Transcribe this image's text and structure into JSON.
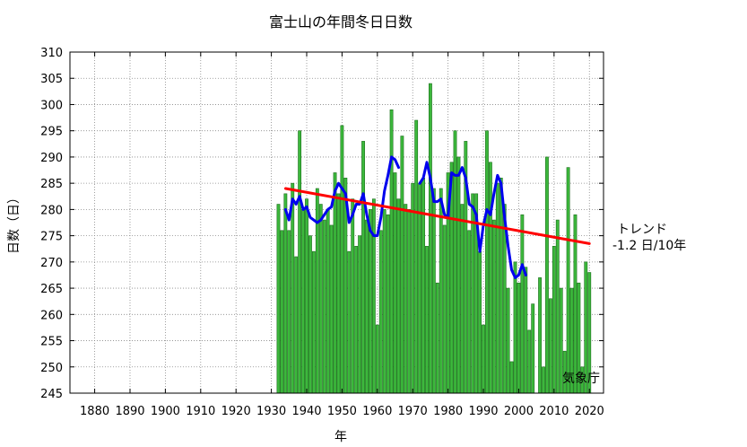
{
  "chart_data": {
    "type": "bar",
    "title": "富士山の年間冬日日数",
    "xlabel": "年",
    "ylabel": "日数（日）",
    "xlim": [
      1873,
      2024
    ],
    "ylim": [
      245,
      310
    ],
    "xticks": [
      1880,
      1890,
      1900,
      1910,
      1920,
      1930,
      1940,
      1950,
      1960,
      1970,
      1980,
      1990,
      2000,
      2010,
      2020
    ],
    "yticks": [
      245,
      250,
      255,
      260,
      265,
      270,
      275,
      280,
      285,
      290,
      295,
      300,
      305,
      310
    ],
    "grid": true,
    "credit": "気象庁",
    "trend_label_line1": "トレンド",
    "trend_label_line2": "-1.2 日/10年",
    "colors": {
      "bar": "#3cb83c",
      "bar_edge": "#1d6e1d",
      "moving_average": "#0000ee",
      "trend": "#ff0000"
    },
    "series": [
      {
        "type": "bar",
        "x": [
          1932,
          1933,
          1934,
          1935,
          1936,
          1937,
          1938,
          1939,
          1940,
          1941,
          1942,
          1943,
          1944,
          1945,
          1946,
          1947,
          1948,
          1949,
          1950,
          1951,
          1952,
          1953,
          1954,
          1955,
          1956,
          1957,
          1958,
          1959,
          1960,
          1961,
          1962,
          1963,
          1964,
          1965,
          1966,
          1967,
          1968,
          1969,
          1970,
          1971,
          1972,
          1973,
          1974,
          1975,
          1976,
          1977,
          1978,
          1979,
          1980,
          1981,
          1982,
          1983,
          1984,
          1985,
          1986,
          1987,
          1988,
          1989,
          1990,
          1991,
          1992,
          1993,
          1994,
          1995,
          1996,
          1997,
          1998,
          1999,
          2000,
          2001,
          2002,
          2003,
          2004,
          2005,
          2006,
          2007,
          2008,
          2009,
          2010,
          2011,
          2012,
          2013,
          2014,
          2015,
          2016,
          2017,
          2018,
          2019,
          2020,
          2021
        ],
        "values": [
          281,
          276,
          283,
          276,
          285,
          271,
          295,
          280,
          282,
          275,
          272,
          284,
          281,
          278,
          280,
          277,
          287,
          283,
          296,
          286,
          272,
          282,
          273,
          275,
          293,
          278,
          280,
          282,
          258,
          276,
          280,
          279,
          299,
          287,
          282,
          294,
          281,
          280,
          285,
          297,
          285,
          286,
          273,
          304,
          284,
          266,
          284,
          277,
          287,
          289,
          295,
          290,
          281,
          293,
          276,
          283,
          283,
          272,
          258,
          295,
          289,
          278,
          285,
          286,
          281,
          265,
          251,
          270,
          266,
          279,
          269,
          257,
          262,
          245,
          267,
          250,
          290,
          263,
          273,
          278,
          265,
          253,
          288,
          265,
          279,
          266,
          250,
          270,
          268,
          245
        ]
      },
      {
        "type": "line",
        "x": [
          1934,
          1935,
          1936,
          1937,
          1938,
          1939,
          1940,
          1941,
          1942,
          1943,
          1944,
          1945,
          1946,
          1947,
          1948,
          1949,
          1950,
          1951,
          1952,
          1953,
          1954,
          1955,
          1956,
          1957,
          1958,
          1959,
          1960,
          1961,
          1962,
          1963,
          1964,
          1965,
          1966
        ],
        "values": [
          280,
          278,
          282,
          281,
          282.5,
          280,
          280.5,
          278.5,
          278,
          277.5,
          278,
          279,
          280,
          280.5,
          283.5,
          285,
          284,
          283,
          277.5,
          279,
          281,
          281,
          283,
          279,
          276,
          275,
          275,
          278.5,
          283.5,
          286.5,
          290,
          289.5,
          288
        ]
      },
      {
        "type": "line",
        "x": [
          1972,
          1973,
          1974,
          1975,
          1976,
          1977,
          1978,
          1979,
          1980,
          1981,
          1982,
          1983,
          1984,
          1985,
          1986,
          1987,
          1988,
          1989,
          1990,
          1991,
          1992,
          1993,
          1994,
          1995,
          1996,
          1997,
          1998,
          1999,
          2000,
          2001,
          2002
        ],
        "values": [
          285,
          286,
          289,
          286,
          281.5,
          281.5,
          282,
          279,
          278.5,
          287,
          286.5,
          286.5,
          288,
          286,
          281,
          280.5,
          279,
          272,
          277,
          280,
          279,
          283,
          286.5,
          285,
          278.5,
          273,
          268.5,
          267,
          267.5,
          269.5,
          267.5
        ]
      },
      {
        "type": "line",
        "x": [
          1934,
          2020
        ],
        "values": [
          284,
          273.5
        ]
      }
    ]
  }
}
